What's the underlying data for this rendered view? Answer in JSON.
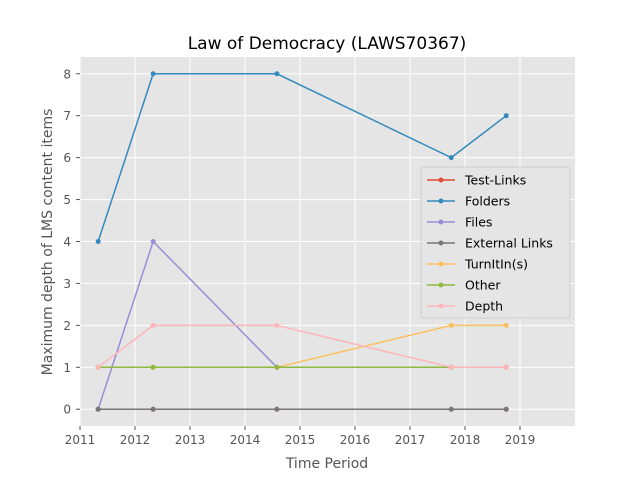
{
  "chart_data": {
    "type": "line",
    "title": "Law of Democracy (LAWS70367)",
    "xlabel": "Time Period",
    "ylabel": "Maximum depth of LMS content items",
    "xlim": [
      2011,
      2020
    ],
    "ylim": [
      -0.4,
      8.4
    ],
    "x_ticks": [
      "2011",
      "2012",
      "2013",
      "2014",
      "2015",
      "2016",
      "2017",
      "2018",
      "2019"
    ],
    "y_ticks": [
      "0",
      "1",
      "2",
      "3",
      "4",
      "5",
      "6",
      "7",
      "8"
    ],
    "grid": true,
    "legend_position": "center-right",
    "x": [
      2011.33,
      2012.33,
      2014.58,
      2017.75,
      2018.75
    ],
    "series": [
      {
        "name": "Test-Links",
        "color": "#E24A33",
        "values": [
          0,
          0,
          0,
          0,
          0
        ]
      },
      {
        "name": "Folders",
        "color": "#348ABD",
        "values": [
          4,
          8,
          8,
          6,
          7
        ]
      },
      {
        "name": "Files",
        "color": "#988ED5",
        "values": [
          0,
          4,
          1,
          1,
          1
        ]
      },
      {
        "name": "External Links",
        "color": "#777777",
        "values": [
          0,
          0,
          0,
          0,
          0
        ]
      },
      {
        "name": "TurnItIn(s)",
        "color": "#FBC15E",
        "values": [
          1,
          1,
          1,
          2,
          2
        ]
      },
      {
        "name": "Other",
        "color": "#8EBA42",
        "values": [
          1,
          1,
          1,
          1,
          1
        ]
      },
      {
        "name": "Depth",
        "color": "#FFB5B8",
        "values": [
          1,
          2,
          2,
          1,
          1
        ]
      }
    ]
  }
}
